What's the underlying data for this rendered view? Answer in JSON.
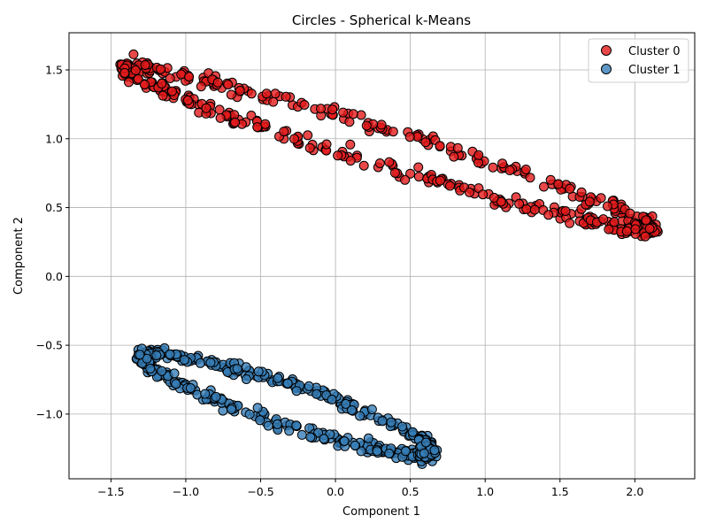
{
  "chart_data": {
    "type": "scatter",
    "title": "Circles - Spherical k-Means",
    "xlabel": "Component 1",
    "ylabel": "Component 2",
    "xlim": [
      -1.78,
      2.4
    ],
    "ylim": [
      -1.47,
      1.77
    ],
    "xticks": [
      -1.5,
      -1.0,
      -0.5,
      0.0,
      0.5,
      1.0,
      1.5,
      2.0
    ],
    "xtick_labels": [
      "−1.5",
      "−1.0",
      "−0.5",
      "0.0",
      "0.5",
      "1.0",
      "1.5",
      "2.0"
    ],
    "yticks": [
      -1.0,
      -0.5,
      0.0,
      0.5,
      1.0,
      1.5
    ],
    "ytick_labels": [
      "−1.0",
      "−0.5",
      "0.0",
      "0.5",
      "1.0",
      "1.5"
    ],
    "grid": true,
    "legend_position": "top-right",
    "series": [
      {
        "name": "Cluster 0",
        "color": "#e41a1c",
        "outer_band_endpoints": [
          [
            -1.4,
            1.55
          ],
          [
            2.0,
            0.45
          ]
        ],
        "inner_band_endpoints": [
          [
            -1.35,
            1.4
          ],
          [
            2.1,
            0.3
          ]
        ],
        "inner_band_midpoint": [
          0.3,
          0.65
        ],
        "points": 500
      },
      {
        "name": "Cluster 1",
        "color": "#377eb8",
        "outer_band_endpoints": [
          [
            -1.25,
            -0.58
          ],
          [
            0.65,
            -1.3
          ]
        ],
        "outer_band_midpoint": [
          -0.2,
          -0.8
        ],
        "inner_band_endpoints": [
          [
            -1.2,
            -0.62
          ],
          [
            0.5,
            -1.15
          ]
        ],
        "inner_band_midpoint": [
          -0.3,
          -1.05
        ],
        "points": 500
      }
    ]
  }
}
